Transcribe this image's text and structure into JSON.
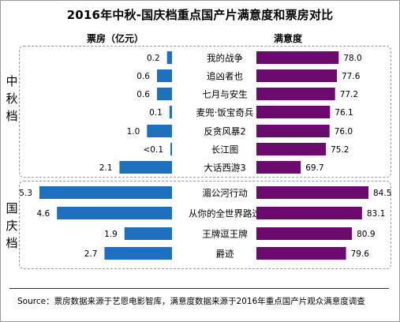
{
  "title": "2016年中秋-国庆档重点国产片满意度和票房对比",
  "header_left": "票房（亿元）",
  "header_right": "满意度",
  "group_labels": {
    "mid_autumn": "中\n秋\n档",
    "national_day": "国\n庆\n档"
  },
  "source": "Source：票房数据来源于艺恩电影智库，满意度数据来源于2016年重点国产片观众满意度调查",
  "colors": {
    "box_office": "#1f6fbf",
    "satisfaction": "#6d0a6d"
  },
  "chart_data": {
    "type": "bar",
    "title": "2016年中秋-国庆档重点国产片满意度和票房对比",
    "series": [
      {
        "name": "票房（亿元）",
        "values": [
          0.2,
          0.6,
          0.6,
          0.1,
          1.0,
          0.05,
          2.1,
          5.3,
          4.6,
          1.9,
          2.7
        ],
        "labels": [
          "0.2",
          "0.6",
          "0.6",
          "0.1",
          "1.0",
          "<0.1",
          "2.1",
          "5.3",
          "4.6",
          "1.9",
          "2.7"
        ]
      },
      {
        "name": "满意度",
        "values": [
          78.0,
          77.6,
          77.2,
          76.1,
          76.0,
          75.2,
          69.7,
          84.5,
          83.1,
          80.9,
          79.6
        ],
        "labels": [
          "78.0",
          "77.6",
          "77.2",
          "76.1",
          "76.0",
          "75.2",
          "69.7",
          "84.5",
          "83.1",
          "80.9",
          "79.6"
        ]
      }
    ],
    "categories": [
      "我的战争",
      "追凶者也",
      "七月与安生",
      "麦兜·饭宝奇兵",
      "反贪风暴2",
      "长江图",
      "大话西游3",
      "湄公河行动",
      "从你的全世界路过",
      "王牌逗王牌",
      "爵迹"
    ],
    "groups": [
      {
        "label": "中秋档",
        "count": 7
      },
      {
        "label": "国庆档",
        "count": 4
      }
    ],
    "xlim_box_office": [
      0,
      5.5
    ],
    "xlim_satisfaction": [
      60,
      86
    ]
  }
}
